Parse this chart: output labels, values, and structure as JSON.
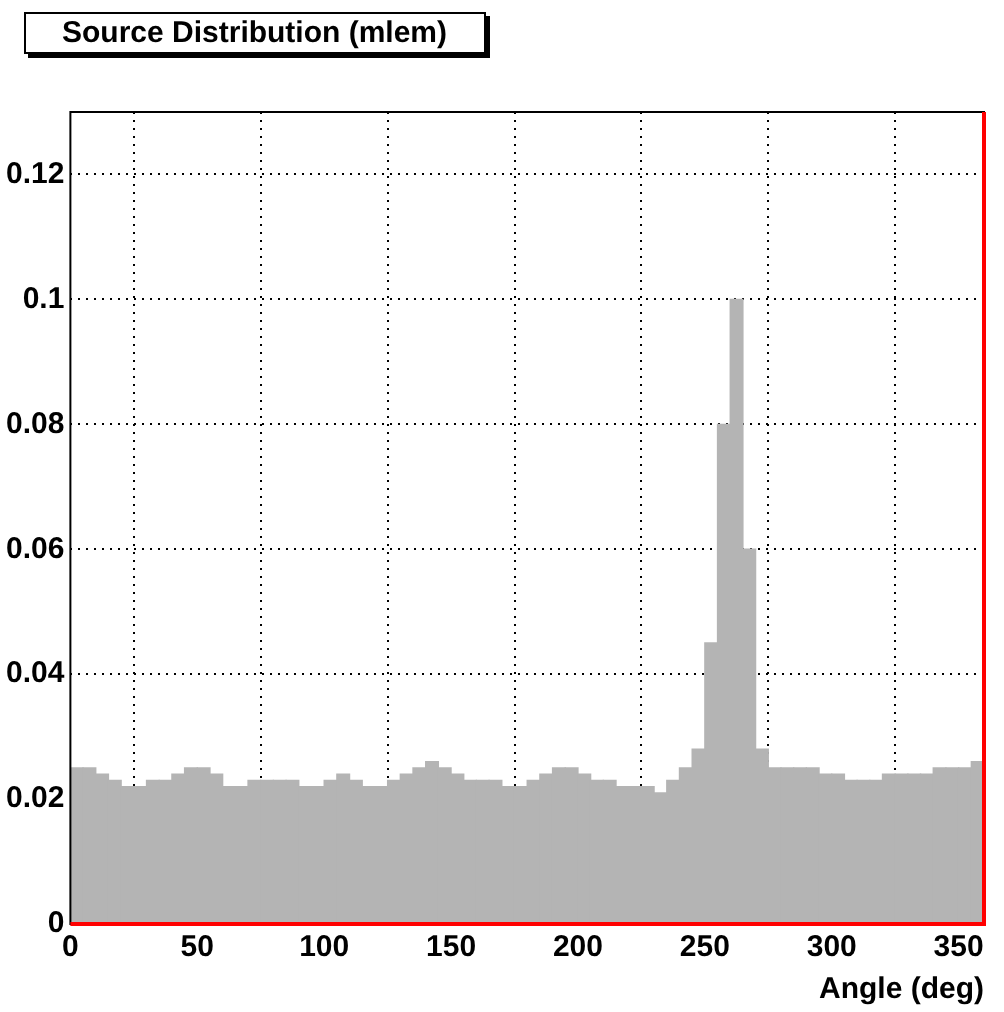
{
  "chart_data": {
    "type": "histogram",
    "title": "Source Distribution (mlem)",
    "xlabel": "Angle (deg)",
    "bins": [
      0,
      5,
      10,
      15,
      20,
      25,
      30,
      35,
      40,
      45,
      50,
      55,
      60,
      65,
      70,
      75,
      80,
      85,
      90,
      95,
      100,
      105,
      110,
      115,
      120,
      125,
      130,
      135,
      140,
      145,
      150,
      155,
      160,
      165,
      170,
      175,
      180,
      185,
      190,
      195,
      200,
      205,
      210,
      215,
      220,
      225,
      230,
      235,
      240,
      245,
      250,
      255,
      260,
      265,
      270,
      275,
      280,
      285,
      290,
      295,
      300,
      305,
      310,
      315,
      320,
      325,
      330,
      335,
      340,
      345,
      350,
      355,
      360
    ],
    "values": [
      0.025,
      0.025,
      0.024,
      0.023,
      0.022,
      0.022,
      0.023,
      0.023,
      0.024,
      0.025,
      0.025,
      0.024,
      0.022,
      0.022,
      0.023,
      0.023,
      0.023,
      0.023,
      0.022,
      0.022,
      0.023,
      0.024,
      0.023,
      0.022,
      0.022,
      0.023,
      0.024,
      0.025,
      0.026,
      0.025,
      0.024,
      0.023,
      0.023,
      0.023,
      0.022,
      0.022,
      0.023,
      0.024,
      0.025,
      0.025,
      0.024,
      0.023,
      0.023,
      0.022,
      0.022,
      0.022,
      0.021,
      0.023,
      0.025,
      0.028,
      0.045,
      0.08,
      0.1,
      0.06,
      0.028,
      0.025,
      0.025,
      0.025,
      0.025,
      0.024,
      0.024,
      0.023,
      0.023,
      0.023,
      0.024,
      0.024,
      0.024,
      0.024,
      0.025,
      0.025,
      0.025,
      0.026
    ],
    "color": "#b4b4b4",
    "xlim": [
      0,
      360
    ],
    "xticks": [
      0,
      50,
      100,
      150,
      200,
      250,
      300,
      350
    ],
    "ylim": [
      0,
      0.13
    ],
    "yticks": [
      0,
      0.02,
      0.04,
      0.06,
      0.08,
      0.1,
      0.12
    ],
    "grid": true
  }
}
